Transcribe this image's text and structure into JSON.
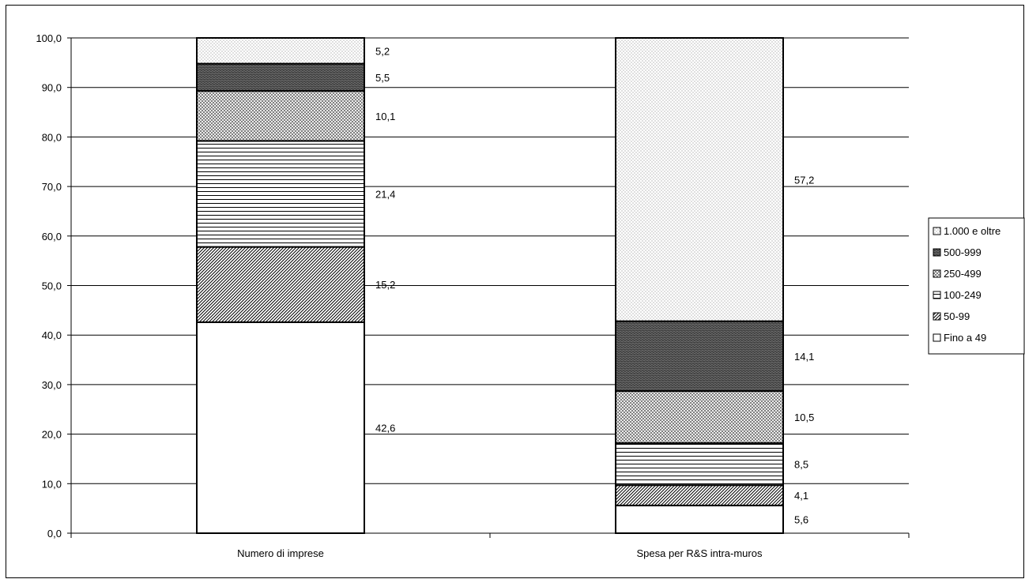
{
  "chart_data": {
    "type": "bar",
    "stacked": true,
    "categories": [
      "Numero di imprese",
      "Spesa per R&S intra-muros"
    ],
    "ylim": [
      0,
      100
    ],
    "yticks": [
      "0,0",
      "10,0",
      "20,0",
      "30,0",
      "40,0",
      "50,0",
      "60,0",
      "70,0",
      "80,0",
      "90,0",
      "100,0"
    ],
    "grid": true,
    "legend_position": "right",
    "series": [
      {
        "name": "Fino a 49",
        "pattern": "blank",
        "values": [
          42.6,
          5.6
        ],
        "labels": [
          "42,6",
          "5,6"
        ]
      },
      {
        "name": "50-99",
        "pattern": "diagonal-dense",
        "values": [
          15.2,
          4.1
        ],
        "labels": [
          "15,2",
          "4,1"
        ]
      },
      {
        "name": "100-249",
        "pattern": "horizontal-lines",
        "values": [
          21.4,
          8.5
        ],
        "labels": [
          "21,4",
          "8,5"
        ]
      },
      {
        "name": "250-499",
        "pattern": "crosshatch",
        "values": [
          10.1,
          10.5
        ],
        "labels": [
          "10,1",
          "10,5"
        ]
      },
      {
        "name": "500-999",
        "pattern": "wave-dark",
        "values": [
          5.5,
          14.1
        ],
        "labels": [
          "5,5",
          "14,1"
        ]
      },
      {
        "name": "1.000 e oltre",
        "pattern": "dots",
        "values": [
          5.2,
          57.2
        ],
        "labels": [
          "5,2",
          "57,2"
        ]
      }
    ],
    "legend_order": [
      "1.000 e oltre",
      "500-999",
      "250-499",
      "100-249",
      "50-99",
      "Fino a 49"
    ]
  }
}
